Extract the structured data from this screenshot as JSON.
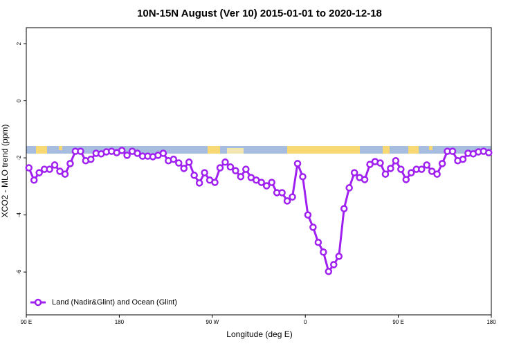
{
  "chart_data": {
    "type": "line",
    "title": "10N-15N August (Ver 10)   2015-01-01 to 2020-12-18",
    "x_label": "Longitude (deg E)",
    "y_label": "XCO2 - MLO trend (ppm)",
    "xlim": [
      90,
      540
    ],
    "xticks": [
      {
        "value": 90,
        "label": "90 E"
      },
      180,
      {
        "value": 270,
        "label": "90 W"
      },
      {
        "value": 360,
        "label": "0"
      },
      {
        "value": 450,
        "label": "90 E"
      },
      {
        "value": 540,
        "label": "180"
      }
    ],
    "ylim": [
      -7.5,
      2.56
    ],
    "yticks": [
      -6,
      -4,
      -2,
      0,
      2
    ],
    "legend": "bottom-left",
    "x": [
      92.5,
      97.5,
      102.5,
      107.5,
      112.5,
      117.5,
      122.5,
      127.5,
      132.5,
      137.5,
      142.5,
      147.5,
      152.5,
      157.5,
      162.5,
      167.5,
      172.5,
      177.5,
      182.5,
      187.5,
      192.5,
      197.5,
      202.5,
      207.5,
      212.5,
      217.5,
      222.5,
      227.5,
      232.5,
      237.5,
      242.5,
      247.5,
      252.5,
      257.5,
      262.5,
      267.5,
      272.5,
      277.5,
      282.5,
      287.5,
      292.5,
      297.5,
      302.5,
      307.5,
      312.5,
      317.5,
      322.5,
      327.5,
      332.5,
      337.5,
      342.5,
      347.5,
      352.5,
      357.5,
      362.5,
      367.5,
      372.5,
      377.5,
      382.5,
      387.5,
      392.5,
      397.5,
      402.5,
      407.5,
      412.5,
      417.5,
      422.5,
      427.5,
      432.5,
      437.5,
      442.5,
      447.5,
      452.5,
      457.5,
      462.5,
      467.5,
      472.5,
      477.5,
      482.5,
      487.5,
      492.5,
      497.5,
      502.5,
      507.5,
      512.5,
      517.5,
      522.5,
      527.5,
      532.5,
      537.5
    ],
    "series": [
      {
        "name": "Land (Nadir&Glint) and Ocean (Glint)",
        "color": "#a020f0",
        "values": [
          -2.35,
          -2.78,
          -2.52,
          -2.4,
          -2.4,
          -2.25,
          -2.47,
          -2.57,
          -2.2,
          -1.77,
          -1.77,
          -2.1,
          -2.05,
          -1.84,
          -1.86,
          -1.79,
          -1.77,
          -1.82,
          -1.74,
          -1.91,
          -1.77,
          -1.84,
          -1.94,
          -1.94,
          -1.96,
          -1.91,
          -1.84,
          -2.1,
          -2.05,
          -2.18,
          -2.37,
          -2.15,
          -2.61,
          -2.88,
          -2.52,
          -2.78,
          -2.86,
          -2.35,
          -2.15,
          -2.32,
          -2.45,
          -2.66,
          -2.4,
          -2.69,
          -2.78,
          -2.86,
          -2.98,
          -2.86,
          -3.22,
          -3.22,
          -3.51,
          -3.37,
          -2.2,
          -2.66,
          -4.0,
          -4.43,
          -4.96,
          -5.3,
          -5.98,
          -5.74,
          -5.45,
          -3.78,
          -3.05,
          -2.52,
          -2.69,
          -2.76,
          -2.23,
          -2.13,
          -2.18,
          -2.57,
          -2.37,
          -2.1,
          -2.4,
          -2.76,
          -2.52,
          -2.4,
          -2.4,
          -2.25,
          -2.47,
          -2.57,
          -2.2,
          -1.77,
          -1.77,
          -2.1,
          -2.05,
          -1.84,
          -1.86,
          -1.79,
          -1.77,
          -1.82
        ]
      }
    ]
  }
}
